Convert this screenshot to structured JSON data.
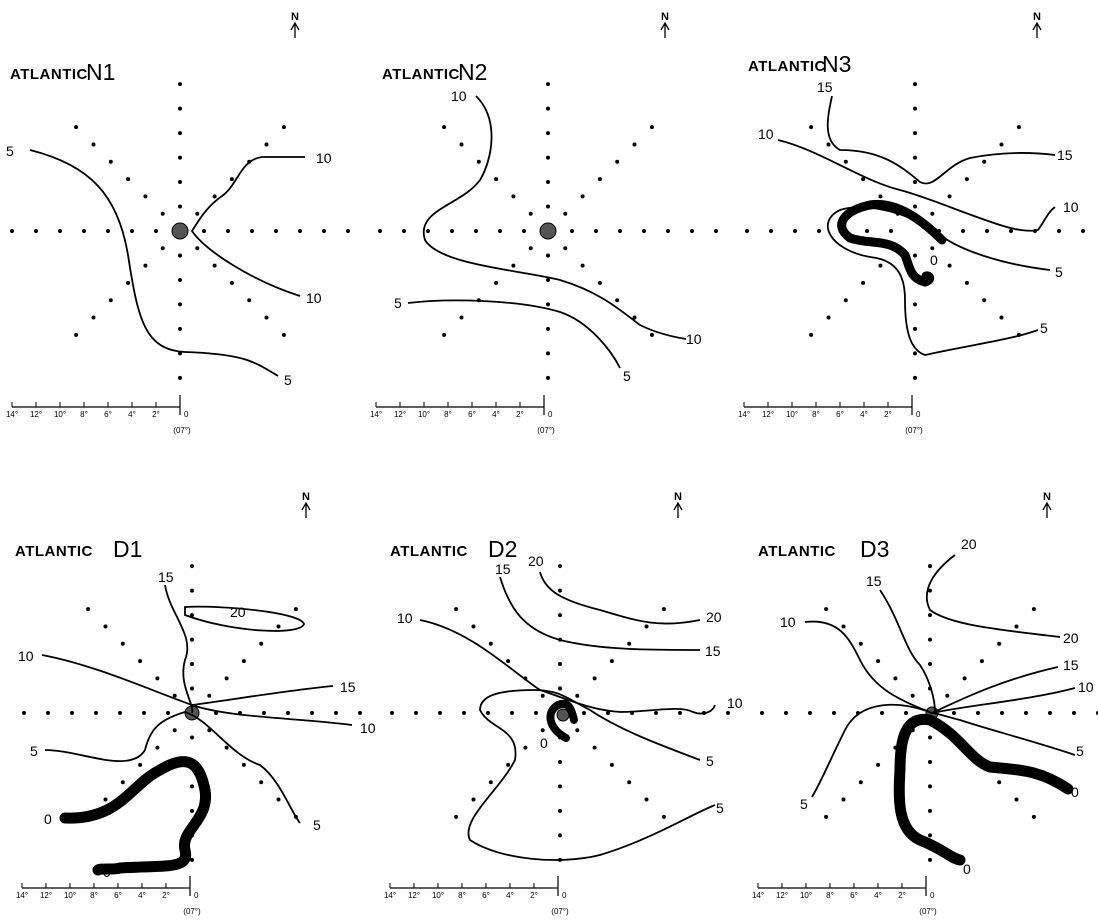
{
  "panels": [
    {
      "id": "N1",
      "title": "ATLANTIC",
      "code": "N1",
      "north": "N",
      "scale": {
        "ticks": [
          "14°",
          "12°",
          "10°",
          "8°",
          "6°",
          "4°",
          "2°",
          "0"
        ],
        "sub": "(07°)"
      },
      "contour_labels": [
        "5",
        "10",
        "10",
        "5"
      ]
    },
    {
      "id": "N2",
      "title": "ATLANTIC",
      "code": "N2",
      "north": "N",
      "scale": {
        "ticks": [
          "14°",
          "12°",
          "10°",
          "8°",
          "6°",
          "4°",
          "2°",
          "0"
        ],
        "sub": "(07°)"
      },
      "contour_labels": [
        "10",
        "5",
        "10",
        "5"
      ]
    },
    {
      "id": "N3",
      "title": "ATLANTIC",
      "code": "N3",
      "north": "N",
      "scale": {
        "ticks": [
          "14°",
          "12°",
          "10°",
          "8°",
          "6°",
          "4°",
          "2°",
          "0"
        ],
        "sub": "(07°)"
      },
      "contour_labels": [
        "15",
        "10",
        "15",
        "10",
        "0",
        "5",
        "5"
      ]
    },
    {
      "id": "D1",
      "title": "ATLANTIC",
      "code": "D1",
      "north": "N",
      "scale": {
        "ticks": [
          "14°",
          "12°",
          "10°",
          "8°",
          "6°",
          "4°",
          "2°",
          "0"
        ],
        "sub": "(07°)"
      },
      "contour_labels": [
        "15",
        "20",
        "10",
        "15",
        "10",
        "5",
        "0",
        "0",
        "5"
      ]
    },
    {
      "id": "D2",
      "title": "ATLANTIC",
      "code": "D2",
      "north": "N",
      "scale": {
        "ticks": [
          "14°",
          "12°",
          "10°",
          "8°",
          "6°",
          "4°",
          "2°",
          "0"
        ],
        "sub": "(07°)"
      },
      "contour_labels": [
        "20",
        "15",
        "10",
        "20",
        "15",
        "10",
        "0",
        "5",
        "5"
      ]
    },
    {
      "id": "D3",
      "title": "ATLANTIC",
      "code": "D3",
      "north": "N",
      "scale": {
        "ticks": [
          "14°",
          "12°",
          "10°",
          "8°",
          "6°",
          "4°",
          "2°",
          "0"
        ],
        "sub": "(07°)"
      },
      "contour_labels": [
        "20",
        "15",
        "10",
        "20",
        "15",
        "10",
        "5",
        "5",
        "0",
        "0"
      ]
    }
  ]
}
